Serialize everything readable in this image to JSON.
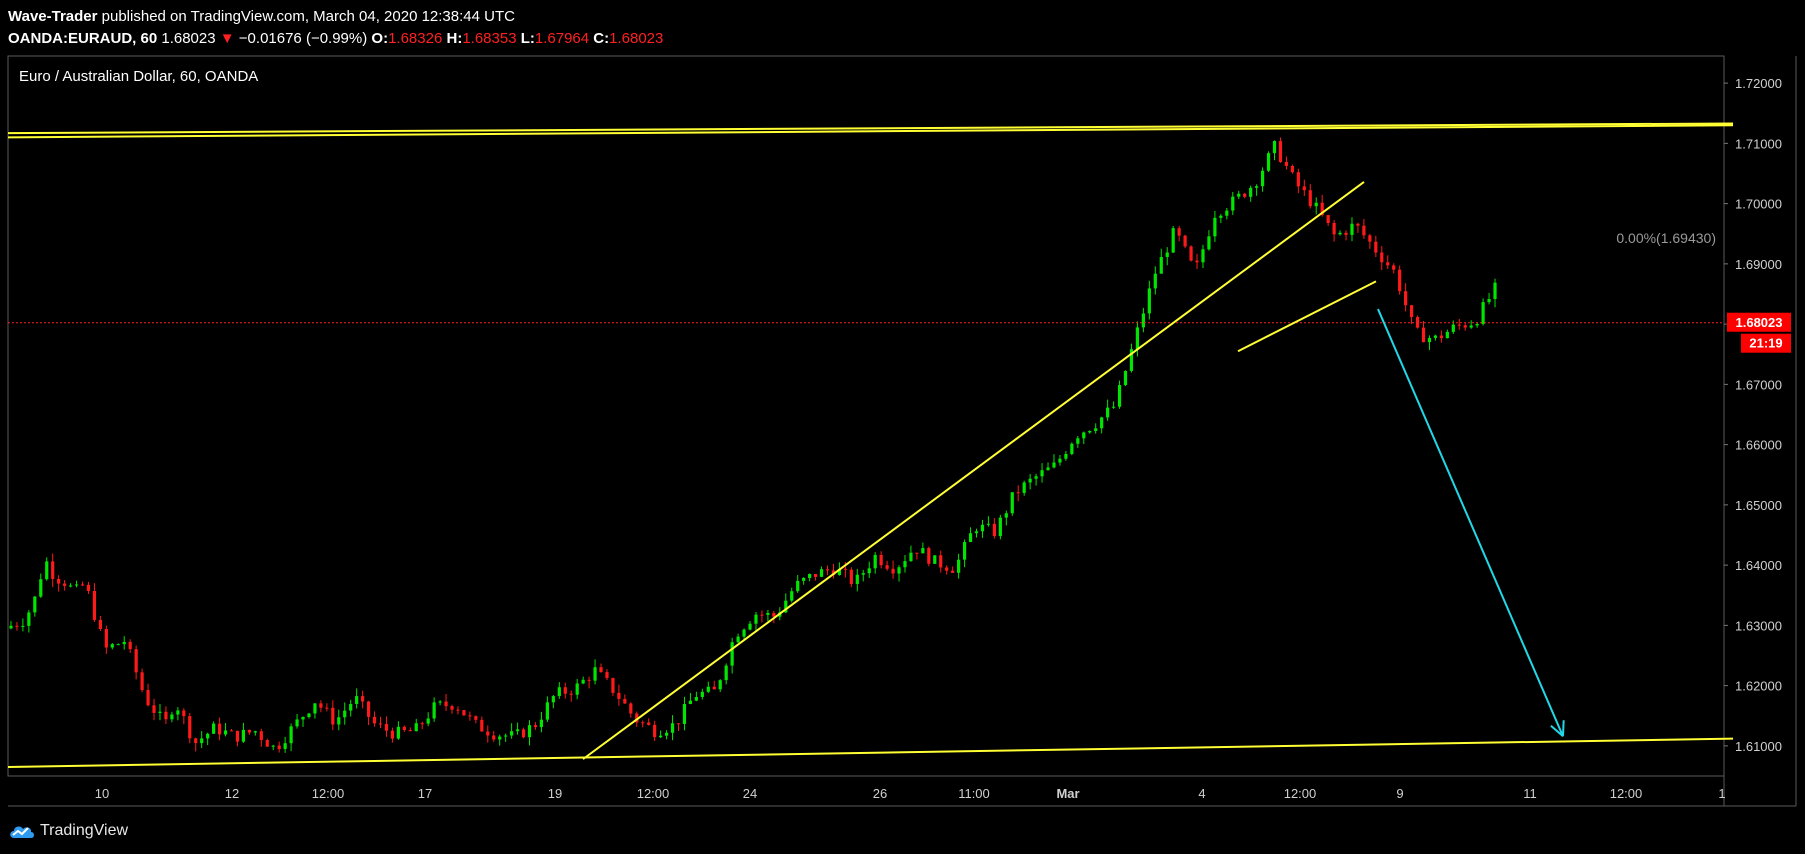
{
  "header": {
    "publisher": "Wave-Trader",
    "published_text": "published on TradingView.com, March 04, 2020 12:38:44 UTC",
    "symbol": "OANDA:EURAUD, 60",
    "last": "1.68023",
    "change_arrow": "▼",
    "change": "−0.01676 (−0.99%)",
    "o_label": "O:",
    "o_value": "1.68326",
    "h_label": "H:",
    "h_value": "1.68353",
    "l_label": "L:",
    "l_value": "1.67964",
    "c_label": "C:",
    "c_value": "1.68023"
  },
  "footer": {
    "brand": "TradingView",
    "logo_icon": "tradingview-cloud-icon"
  },
  "colors": {
    "up": "#00e600",
    "down": "#ff1a1a",
    "trendline": "#ffff33",
    "target_arrow": "#22d8e8",
    "price_badge": "#ff0000"
  },
  "chart_data": {
    "type": "candlestick",
    "title": "Euro / Australian Dollar, 60, OANDA",
    "ylim": [
      1.605,
      1.7245
    ],
    "y_ticks": [
      "1.72000",
      "1.71000",
      "1.70000",
      "1.69000",
      "1.68000",
      "1.67000",
      "1.66000",
      "1.65000",
      "1.64000",
      "1.63000",
      "1.62000",
      "1.61000"
    ],
    "x_ticks": [
      "10",
      "12",
      "12:00",
      "17",
      "19",
      "12:00",
      "24",
      "26",
      "11:00",
      "Mar",
      "4",
      "12:00",
      "9",
      "11",
      "12:00",
      "1"
    ],
    "current_price": {
      "value": 1.68023,
      "label": "1.68023",
      "countdown": "21:19"
    },
    "fib_label": {
      "text": "0.00%(1.69430)",
      "value": 1.6943
    },
    "price_path": [
      [
        0,
        1.6295
      ],
      [
        0.02,
        1.631
      ],
      [
        0.03,
        1.6345
      ],
      [
        0.04,
        1.641
      ],
      [
        0.05,
        1.638
      ],
      [
        0.058,
        1.6375
      ],
      [
        0.07,
        1.6355
      ],
      [
        0.08,
        1.637
      ],
      [
        0.1,
        1.626
      ],
      [
        0.12,
        1.6275
      ],
      [
        0.14,
        1.618
      ],
      [
        0.16,
        1.6135
      ],
      [
        0.17,
        1.6175
      ],
      [
        0.19,
        1.6105
      ],
      [
        0.21,
        1.613
      ],
      [
        0.23,
        1.6115
      ],
      [
        0.25,
        1.6125
      ],
      [
        0.27,
        1.6095
      ],
      [
        0.29,
        1.6135
      ],
      [
        0.31,
        1.6175
      ],
      [
        0.33,
        1.614
      ],
      [
        0.35,
        1.618
      ],
      [
        0.37,
        1.6135
      ],
      [
        0.39,
        1.612
      ],
      [
        0.41,
        1.6125
      ],
      [
        0.43,
        1.6165
      ],
      [
        0.45,
        1.617
      ],
      [
        0.47,
        1.6135
      ],
      [
        0.49,
        1.612
      ],
      [
        0.51,
        1.6115
      ],
      [
        0.53,
        1.6135
      ],
      [
        0.55,
        1.6185
      ],
      [
        0.57,
        1.6195
      ],
      [
        0.59,
        1.6225
      ],
      [
        0.61,
        1.619
      ],
      [
        0.63,
        1.6145
      ],
      [
        0.65,
        1.6125
      ],
      [
        0.67,
        1.6135
      ],
      [
        0.69,
        1.6185
      ],
      [
        0.71,
        1.619
      ],
      [
        0.73,
        1.6285
      ],
      [
        0.75,
        1.632
      ],
      [
        0.77,
        1.6315
      ],
      [
        0.79,
        1.6365
      ],
      [
        0.81,
        1.6385
      ],
      [
        0.83,
        1.6395
      ],
      [
        0.85,
        1.637
      ],
      [
        0.87,
        1.6415
      ],
      [
        0.89,
        1.6395
      ],
      [
        0.91,
        1.643
      ],
      [
        0.93,
        1.6405
      ],
      [
        0.95,
        1.6395
      ],
      [
        0.97,
        1.6465
      ],
      [
        0.99,
        1.6455
      ],
      [
        1.01,
        1.652
      ],
      [
        1.03,
        1.6545
      ],
      [
        1.05,
        1.6565
      ],
      [
        1.07,
        1.6615
      ],
      [
        1.09,
        1.6635
      ],
      [
        1.11,
        1.6665
      ],
      [
        1.13,
        1.6775
      ],
      [
        1.15,
        1.6885
      ],
      [
        1.17,
        1.6955
      ],
      [
        1.19,
        1.6885
      ],
      [
        1.21,
        1.6985
      ],
      [
        1.23,
        1.7005
      ],
      [
        1.25,
        1.7035
      ],
      [
        1.27,
        1.7095
      ],
      [
        1.29,
        1.7035
      ],
      [
        1.31,
        1.6995
      ],
      [
        1.33,
        1.6945
      ],
      [
        1.35,
        1.6965
      ],
      [
        1.37,
        1.6925
      ],
      [
        1.39,
        1.6885
      ],
      [
        1.41,
        1.6785
      ],
      [
        1.43,
        1.6775
      ],
      [
        1.45,
        1.6795
      ],
      [
        1.47,
        1.6805
      ],
      [
        1.49,
        1.6858
      ]
    ],
    "annotations": [
      {
        "type": "trendline",
        "name": "upper-resistance-line",
        "from": [
          0.0,
          1.711
        ],
        "to": [
          1.725,
          1.713
        ]
      },
      {
        "type": "trendline",
        "name": "upper-resistance-line-2",
        "from": [
          0.0,
          1.7117
        ],
        "to": [
          1.725,
          1.7133
        ]
      },
      {
        "type": "trendline",
        "name": "lower-support-line",
        "from": [
          0.0,
          1.6065
        ],
        "to": [
          1.725,
          1.6112
        ]
      },
      {
        "type": "trendline",
        "name": "rising-trendline",
        "from": [
          0.575,
          1.6078
        ],
        "to": [
          1.356,
          1.7036
        ]
      },
      {
        "type": "trendline",
        "name": "rising-wedge-line",
        "from": [
          1.23,
          1.6755
        ],
        "to": [
          1.368,
          1.6871
        ]
      },
      {
        "type": "arrow",
        "name": "target-arrow",
        "from": [
          1.37,
          1.6825
        ],
        "to": [
          1.555,
          1.6116
        ]
      }
    ]
  }
}
